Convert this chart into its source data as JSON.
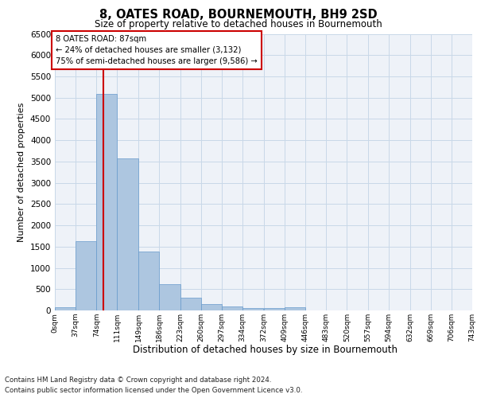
{
  "title": "8, OATES ROAD, BOURNEMOUTH, BH9 2SD",
  "subtitle": "Size of property relative to detached houses in Bournemouth",
  "xlabel": "Distribution of detached houses by size in Bournemouth",
  "ylabel": "Number of detached properties",
  "bar_color": "#adc6e0",
  "bar_edge_color": "#6699cc",
  "grid_color": "#c8d8e8",
  "background_color": "#eef2f8",
  "property_line_color": "#cc0000",
  "property_size": 87,
  "property_label": "8 OATES ROAD: 87sqm",
  "annotation_line1": "← 24% of detached houses are smaller (3,132)",
  "annotation_line2": "75% of semi-detached houses are larger (9,586) →",
  "footer_line1": "Contains HM Land Registry data © Crown copyright and database right 2024.",
  "footer_line2": "Contains public sector information licensed under the Open Government Licence v3.0.",
  "bin_edges": [
    0,
    37,
    74,
    111,
    149,
    186,
    223,
    260,
    297,
    334,
    372,
    409,
    446,
    483,
    520,
    557,
    594,
    632,
    669,
    706,
    743
  ],
  "bin_labels": [
    "0sqm",
    "37sqm",
    "74sqm",
    "111sqm",
    "149sqm",
    "186sqm",
    "223sqm",
    "260sqm",
    "297sqm",
    "334sqm",
    "372sqm",
    "409sqm",
    "446sqm",
    "483sqm",
    "520sqm",
    "557sqm",
    "594sqm",
    "632sqm",
    "669sqm",
    "706sqm",
    "743sqm"
  ],
  "counts": [
    70,
    1620,
    5080,
    3580,
    1390,
    615,
    305,
    150,
    100,
    58,
    52,
    75,
    0,
    0,
    0,
    0,
    0,
    0,
    0,
    0
  ],
  "ylim": [
    0,
    6500
  ],
  "yticks": [
    0,
    500,
    1000,
    1500,
    2000,
    2500,
    3000,
    3500,
    4000,
    4500,
    5000,
    5500,
    6000,
    6500
  ]
}
